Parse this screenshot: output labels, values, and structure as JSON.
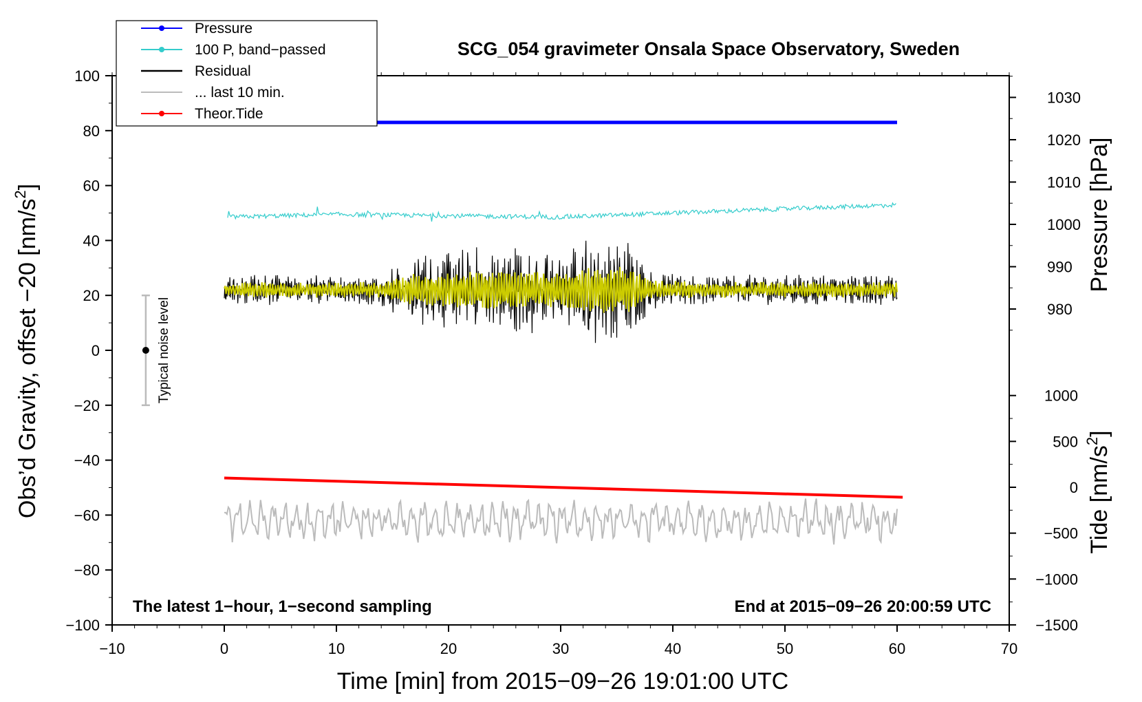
{
  "chart_data": {
    "type": "line",
    "title": "SCG_054 gravimeter Onsala Space Observatory, Sweden",
    "xlabel": "Time [min] from 2015−09−26 19:01:00 UTC",
    "ylabel_left": "Obs’d Gravity, offset −20 [nm/s",
    "ylabel_left_sup": "2",
    "ylabel_left_end": "]",
    "ylabel_pressure": "Pressure [hPa]",
    "ylabel_tide": "Tide [nm/s",
    "ylabel_tide_sup": "2",
    "ylabel_tide_end": "]",
    "xlim": [
      -10,
      70
    ],
    "ylim": [
      -100,
      100
    ],
    "pressure_axis_range": [
      980,
      1030
    ],
    "tide_axis_range": [
      -1500,
      1000
    ],
    "x_ticks": [
      -10,
      0,
      10,
      20,
      30,
      40,
      50,
      60,
      70
    ],
    "x_tick_labels": [
      "−10",
      "0",
      "10",
      "20",
      "30",
      "40",
      "50",
      "60",
      "70"
    ],
    "y_ticks": [
      -100,
      -80,
      -60,
      -40,
      -20,
      0,
      20,
      40,
      60,
      80,
      100
    ],
    "y_tick_labels": [
      "−100",
      "−80",
      "−60",
      "−40",
      "−20",
      "0",
      "20",
      "40",
      "60",
      "80",
      "100"
    ],
    "pressure_ticks": [
      980,
      990,
      1000,
      1010,
      1020,
      1030
    ],
    "pressure_tick_labels": [
      "980",
      "990",
      "1000",
      "1010",
      "1020",
      "1030"
    ],
    "tide_ticks": [
      -1500,
      -1000,
      -500,
      0,
      500,
      1000
    ],
    "tide_tick_labels": [
      "−1500",
      "−1000",
      "−500",
      "0",
      "500",
      "1000"
    ],
    "corner_left": "The latest 1−hour, 1−second sampling",
    "corner_right": "End at 2015−09−26 20:00:59 UTC",
    "noise_label": "Typical noise level",
    "noise_bar": {
      "x": -7,
      "center": 0,
      "low": -20,
      "high": 20
    },
    "legend_position": "top-left",
    "colors": {
      "pressure": "#0000ff",
      "bandpassed": "#33cccc",
      "residual": "#000000",
      "last10": "#bbbbbb",
      "tide": "#ff0000",
      "filtered": "#cccc00",
      "noise": "#bbbbbb"
    },
    "series": [
      {
        "name": "Pressure",
        "key": "pressure",
        "description": "nearly constant",
        "approx_value": 83,
        "x_range": [
          0,
          60
        ]
      },
      {
        "name": "100 P, band−passed",
        "key": "bandpassed",
        "x": [
          0,
          10,
          20,
          30,
          40,
          50,
          60
        ],
        "values": [
          48.5,
          49.5,
          49,
          48.5,
          50,
          51.5,
          53
        ]
      },
      {
        "name": "Residual",
        "key": "residual",
        "baseline": 22,
        "x_range": [
          0,
          60
        ],
        "amplitude_envelope": {
          "x": [
            0,
            14,
            16,
            24,
            26,
            30,
            32,
            36,
            38,
            45,
            60
          ],
          "amp": [
            4,
            4,
            9,
            12,
            12,
            10,
            14,
            14,
            5,
            4,
            4
          ]
        }
      },
      {
        "name": "... last 10 min.",
        "key": "last10",
        "baseline": -62,
        "x_range": [
          0,
          60
        ],
        "range": [
          -71,
          -54
        ]
      },
      {
        "name": "Theor.Tide",
        "key": "tide",
        "x": [
          0,
          60.5
        ],
        "values": [
          -46.5,
          -53.5
        ]
      }
    ],
    "legend": [
      {
        "label": "Pressure",
        "key": "pressure",
        "marker": true
      },
      {
        "label": "100 P, band−passed",
        "key": "bandpassed",
        "marker": true
      },
      {
        "label": "Residual",
        "key": "residual",
        "marker": false
      },
      {
        "label": "... last 10 min.",
        "key": "last10",
        "marker": false
      },
      {
        "label": "Theor.Tide",
        "key": "tide",
        "marker": true
      }
    ]
  }
}
